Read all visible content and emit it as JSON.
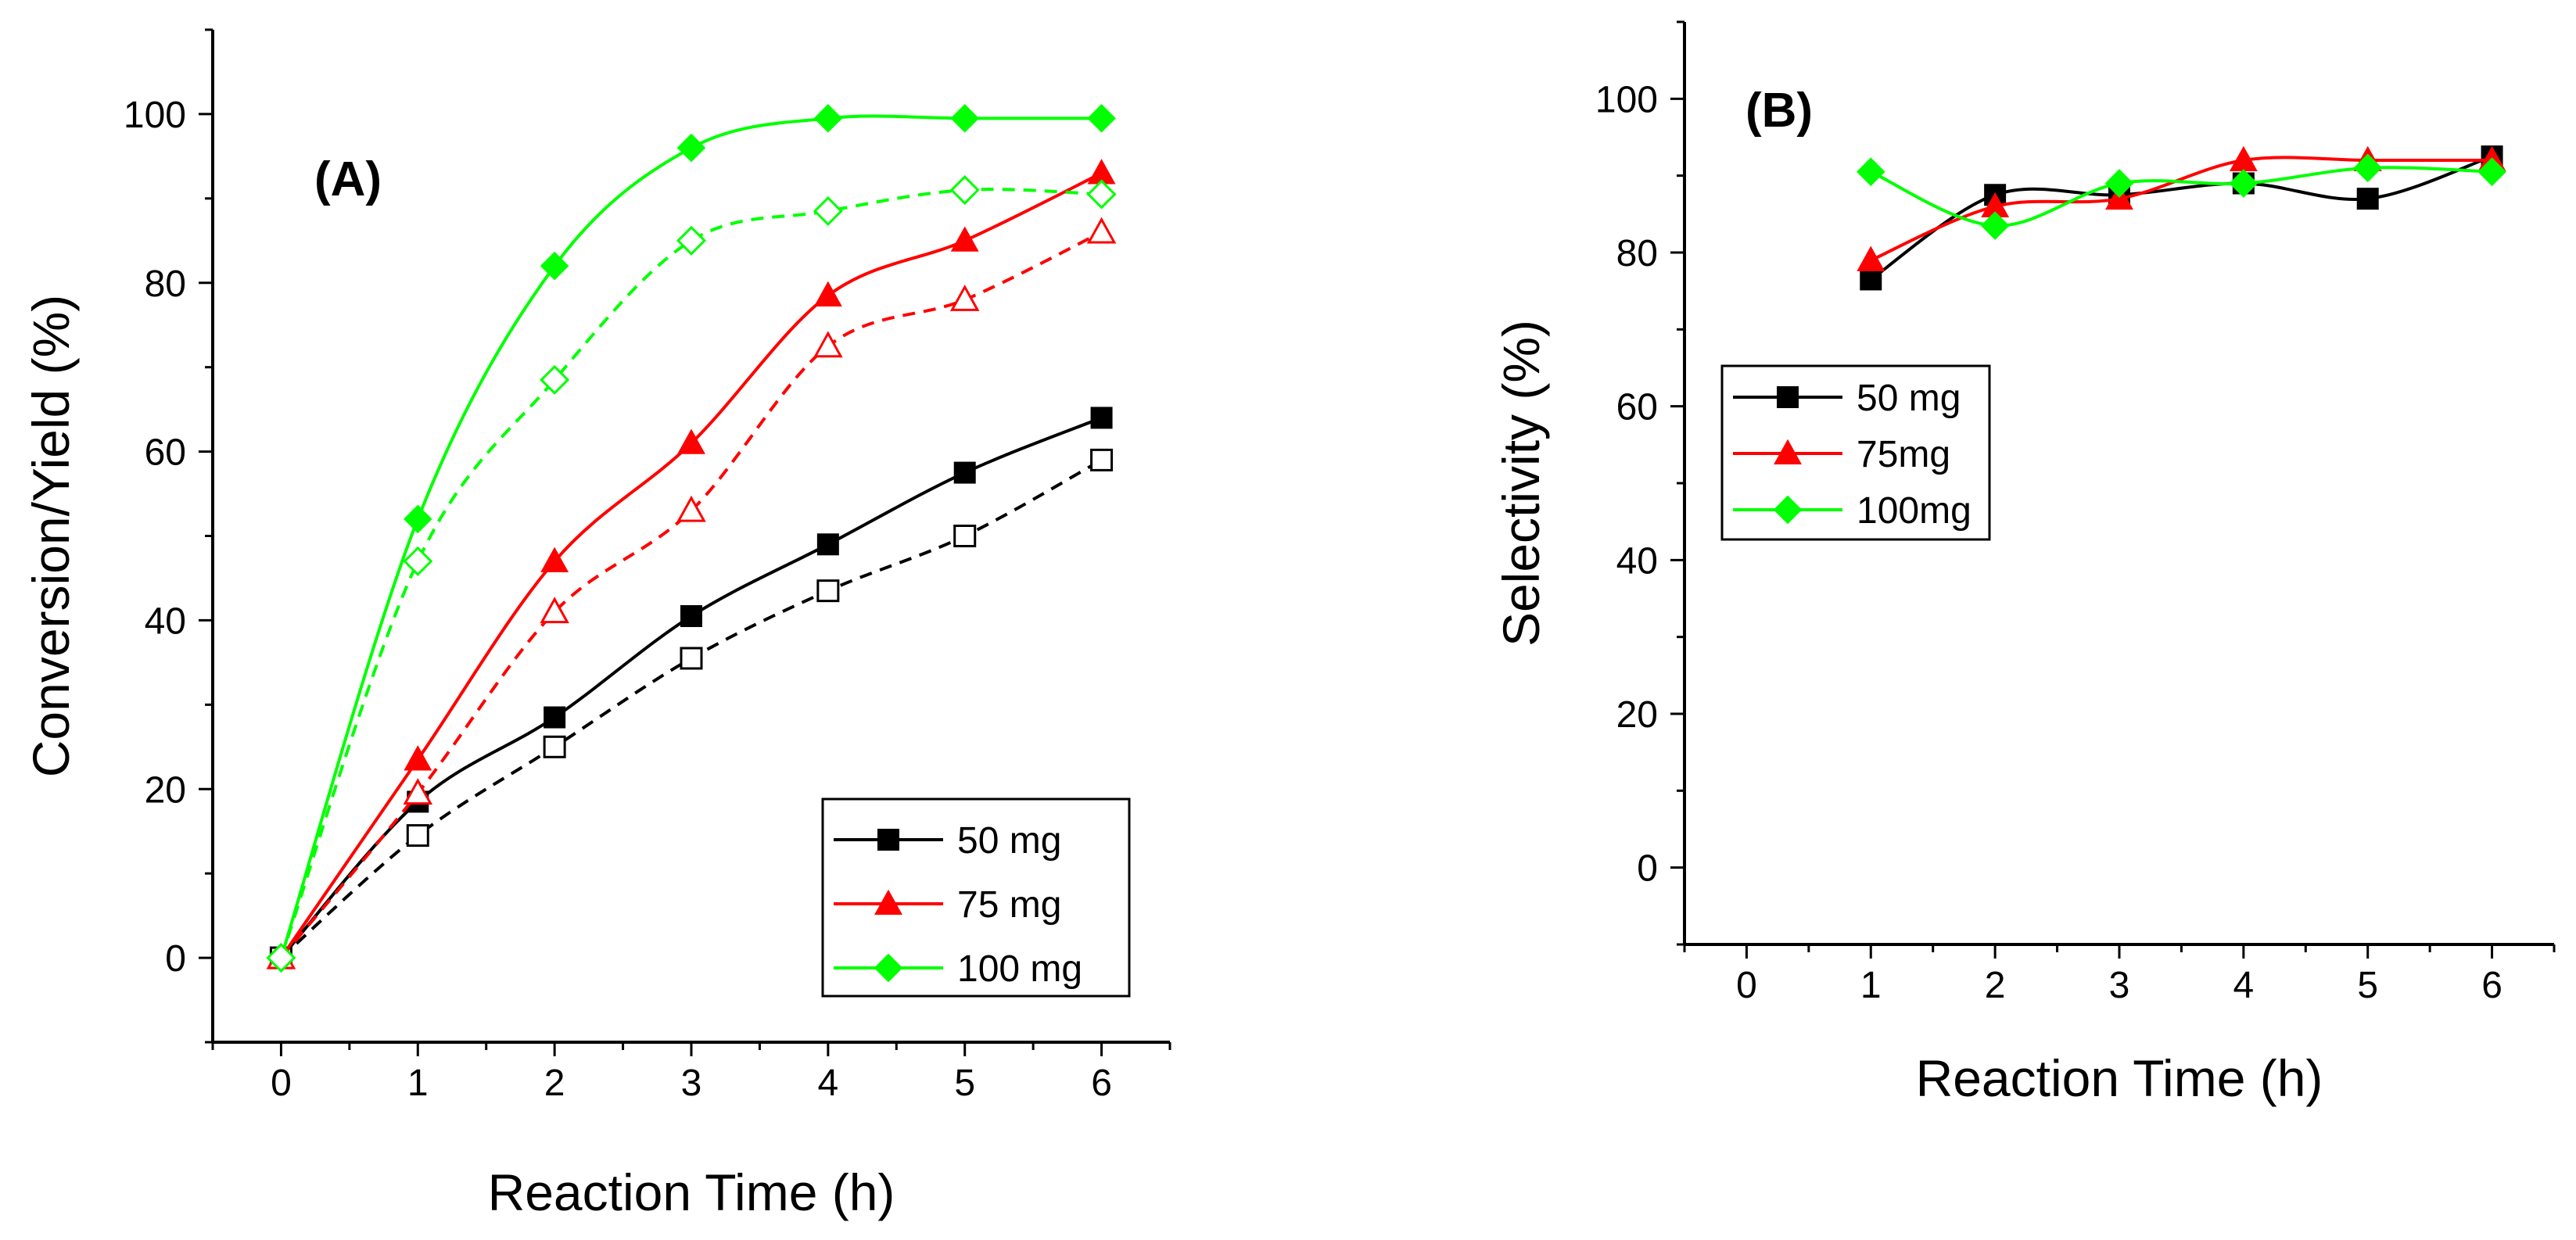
{
  "chart_data": [
    {
      "panel": "A",
      "type": "line",
      "label": "(A)",
      "xlabel": "Reaction Time (h)",
      "ylabel": "Conversion/Yield (%)",
      "xlim": [
        -0.5,
        6.5
      ],
      "ylim": [
        -10,
        110
      ],
      "xticks": [
        0,
        1,
        2,
        3,
        4,
        5,
        6
      ],
      "yticks": [
        0,
        20,
        40,
        60,
        80,
        100
      ],
      "legend_position": "bottom-right",
      "legend": [
        {
          "label": "50 mg",
          "color": "#000000",
          "marker": "square"
        },
        {
          "label": "75 mg",
          "color": "#ff0000",
          "marker": "triangle"
        },
        {
          "label": "100 mg",
          "color": "#00ff00",
          "marker": "diamond"
        }
      ],
      "x": [
        0,
        1,
        2,
        3,
        4,
        5,
        6
      ],
      "series": [
        {
          "name": "50 mg conversion",
          "color": "#000000",
          "marker": "square",
          "filled": true,
          "dashed": false,
          "values": [
            0,
            18.5,
            28.5,
            40.5,
            49,
            57.5,
            64
          ]
        },
        {
          "name": "50 mg yield",
          "color": "#000000",
          "marker": "square",
          "filled": false,
          "dashed": true,
          "values": [
            0,
            14.5,
            25,
            35.5,
            43.5,
            50,
            59
          ]
        },
        {
          "name": "75 mg conversion",
          "color": "#ff0000",
          "marker": "triangle",
          "filled": true,
          "dashed": false,
          "values": [
            0,
            23.5,
            47,
            61,
            78.5,
            85,
            93
          ]
        },
        {
          "name": "75 mg yield",
          "color": "#ff0000",
          "marker": "triangle",
          "filled": false,
          "dashed": true,
          "values": [
            0,
            19.5,
            41,
            53,
            72.5,
            78,
            86
          ]
        },
        {
          "name": "100 mg conversion",
          "color": "#00ff00",
          "marker": "diamond",
          "filled": true,
          "dashed": false,
          "values": [
            0,
            52,
            82,
            96,
            99.5,
            99.5,
            99.5
          ]
        },
        {
          "name": "100 mg yield",
          "color": "#00ff00",
          "marker": "diamond",
          "filled": false,
          "dashed": true,
          "values": [
            0,
            47,
            68.5,
            85,
            88.5,
            91,
            90.5
          ]
        }
      ]
    },
    {
      "panel": "B",
      "type": "line",
      "label": "(B)",
      "xlabel": "Reaction Time (h)",
      "ylabel": "Selectivity (%)",
      "xlim": [
        -0.5,
        6.5
      ],
      "ylim": [
        -10,
        110
      ],
      "xticks": [
        0,
        1,
        2,
        3,
        4,
        5,
        6
      ],
      "yticks": [
        0,
        20,
        40,
        60,
        80,
        100
      ],
      "legend_position": "top-left",
      "legend": [
        {
          "label": "50 mg",
          "color": "#000000",
          "marker": "square"
        },
        {
          "label": "75mg",
          "color": "#ff0000",
          "marker": "triangle"
        },
        {
          "label": "100mg",
          "color": "#00ff00",
          "marker": "diamond"
        }
      ],
      "x": [
        1,
        2,
        3,
        4,
        5,
        6
      ],
      "series": [
        {
          "name": "50 mg",
          "color": "#000000",
          "marker": "square",
          "filled": true,
          "dashed": false,
          "values": [
            76.5,
            87.5,
            87.5,
            89,
            87,
            92.5
          ]
        },
        {
          "name": "75mg",
          "color": "#ff0000",
          "marker": "triangle",
          "filled": true,
          "dashed": false,
          "values": [
            79,
            86,
            87,
            92,
            92,
            92
          ]
        },
        {
          "name": "100mg",
          "color": "#00ff00",
          "marker": "diamond",
          "filled": true,
          "dashed": false,
          "values": [
            90.5,
            83.5,
            89,
            89,
            91,
            90.5
          ]
        }
      ]
    }
  ]
}
